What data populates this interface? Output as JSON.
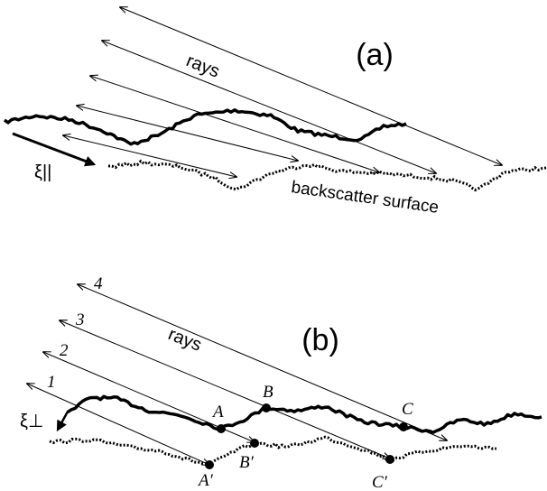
{
  "panel_a": {
    "label": "(a)",
    "rays_label": "rays",
    "xi_label": "ξ||",
    "surface_label": "backscatter surface"
  },
  "panel_b": {
    "label": "(b)",
    "rays_label": "rays",
    "xi_label": "ξ⊥",
    "ray_numbers": [
      "4",
      "3",
      "2",
      "1"
    ],
    "points": [
      "A",
      "B",
      "C"
    ],
    "backscatter_points": [
      "A′",
      "B′",
      "C′"
    ]
  }
}
